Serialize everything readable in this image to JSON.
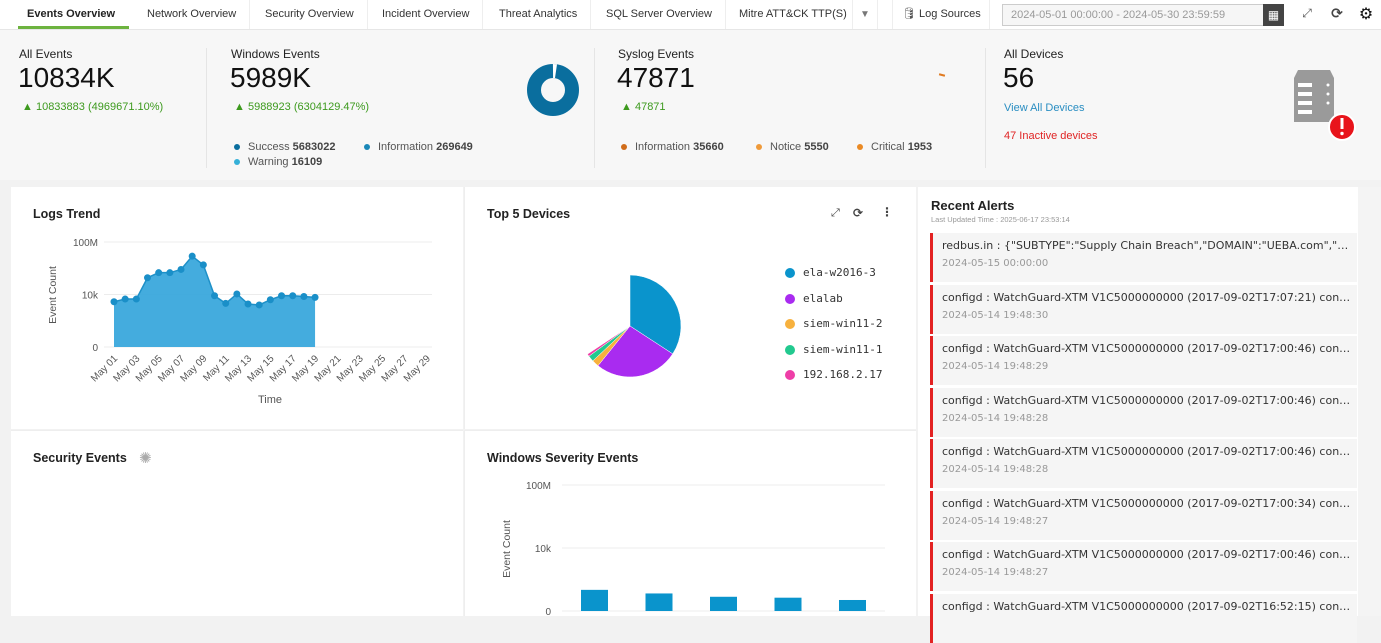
{
  "tabs": [
    "Events Overview",
    "Network Overview",
    "Security Overview",
    "Incident Overview",
    "Threat Analytics",
    "SQL Server Overview",
    "Mitre ATT&CK TTP(S)"
  ],
  "toolbar": {
    "log_sources": "Log Sources",
    "date_range": "2024-05-01 00:00:00 - 2024-05-30 23:59:59"
  },
  "stats": {
    "all_events": {
      "label": "All Events",
      "value": "10834K",
      "delta": "10833883 (4969671.10%)"
    },
    "windows_events": {
      "label": "Windows Events",
      "value": "5989K",
      "delta": "5988923 (6304129.47%)",
      "legend": [
        {
          "label": "Success",
          "value": "5683022",
          "color": "#0a6e9e"
        },
        {
          "label": "Information",
          "value": "269649",
          "color": "#1a88b8"
        },
        {
          "label": "Warning",
          "value": "16109",
          "color": "#35b0d8"
        }
      ]
    },
    "syslog_events": {
      "label": "Syslog Events",
      "value": "47871",
      "delta": "47871",
      "legend": [
        {
          "label": "Information",
          "value": "35660",
          "color": "#d06c1a"
        },
        {
          "label": "Notice",
          "value": "5550",
          "color": "#ef9a3a"
        },
        {
          "label": "Critical",
          "value": "1953",
          "color": "#ea8a24"
        }
      ]
    },
    "all_devices": {
      "label": "All Devices",
      "value": "56",
      "link": "View All Devices",
      "inactive": "47 Inactive devices"
    }
  },
  "panels": {
    "logs_trend": "Logs Trend",
    "top5": "Top 5 Devices",
    "security": "Security Events",
    "win_severity": "Windows Severity Events",
    "recent_alerts": "Recent Alerts",
    "last_updated": "Last Updated Time : 2025-06-17 23:53:14"
  },
  "alerts": [
    {
      "msg": "redbus.in : {\"SUBTYPE\":\"Supply Chain Breach\",\"DOMAIN\":\"UEBA.com\",\"SOURC...",
      "ts": "2024-05-15 00:00:00"
    },
    {
      "msg": "configd : WatchGuard-XTM V1C5000000000 (2017-09-02T17:07:21) configd:m...",
      "ts": "2024-05-14 19:48:30"
    },
    {
      "msg": "configd : WatchGuard-XTM V1C5000000000 (2017-09-02T17:00:46) configd:m...",
      "ts": "2024-05-14 19:48:29"
    },
    {
      "msg": "configd : WatchGuard-XTM V1C5000000000 (2017-09-02T17:00:46) configd:m...",
      "ts": "2024-05-14 19:48:28"
    },
    {
      "msg": "configd : WatchGuard-XTM V1C5000000000 (2017-09-02T17:00:46) configd:m...",
      "ts": "2024-05-14 19:48:28"
    },
    {
      "msg": "configd : WatchGuard-XTM V1C5000000000 (2017-09-02T17:00:34) configd:m...",
      "ts": "2024-05-14 19:48:27"
    },
    {
      "msg": "configd : WatchGuard-XTM V1C5000000000 (2017-09-02T17:00:46) configd:m...",
      "ts": "2024-05-14 19:48:27"
    },
    {
      "msg": "configd : WatchGuard-XTM V1C5000000000 (2017-09-02T16:52:15) configd:m...",
      "ts": ""
    }
  ],
  "chart_data": [
    {
      "type": "area",
      "title": "Logs Trend",
      "xlabel": "Time",
      "ylabel": "Event Count",
      "yscale": "log",
      "yticks": [
        "0",
        "10k",
        "100M"
      ],
      "categories": [
        "May 01",
        "May 02",
        "May 03",
        "May 04",
        "May 05",
        "May 06",
        "May 07",
        "May 08",
        "May 09",
        "May 10",
        "May 11",
        "May 12",
        "May 13",
        "May 14",
        "May 15",
        "May 16",
        "May 17",
        "May 18",
        "May 19"
      ],
      "xtick_labels": [
        "May 01",
        "May 03",
        "May 05",
        "May 07",
        "May 09",
        "May 11",
        "May 13",
        "May 15",
        "May 17",
        "May 19",
        "May 21",
        "May 23",
        "May 25",
        "May 27",
        "May 29"
      ],
      "values": [
        2800,
        4500,
        4500,
        190000,
        460000,
        460000,
        810000,
        8300000,
        1800000,
        8000,
        2100,
        11000,
        1900,
        1600,
        4000,
        8000,
        8000,
        7000,
        6000
      ],
      "color": "#3aa8dc",
      "grid": true
    },
    {
      "type": "pie",
      "title": "Top 5 Devices",
      "legend": "right",
      "labels": [
        "ela-w2016-3",
        "elalab",
        "siem-win11-2",
        "siem-win11-1",
        "192.168.2.17"
      ],
      "values": [
        34.2,
        26.6,
        2.2,
        1.9,
        0.8
      ],
      "colors": [
        "#0a94cc",
        "#a92bf0",
        "#f7b13e",
        "#22c98f",
        "#ee3ea7"
      ]
    },
    {
      "type": "bar",
      "title": "Windows Severity Events",
      "ylabel": "Event Count",
      "yscale": "log",
      "yticks": [
        "0",
        "10k",
        "100M"
      ],
      "values": [
        22,
        13,
        8,
        7,
        5
      ],
      "color": "#0a94cc",
      "grid": true
    }
  ]
}
